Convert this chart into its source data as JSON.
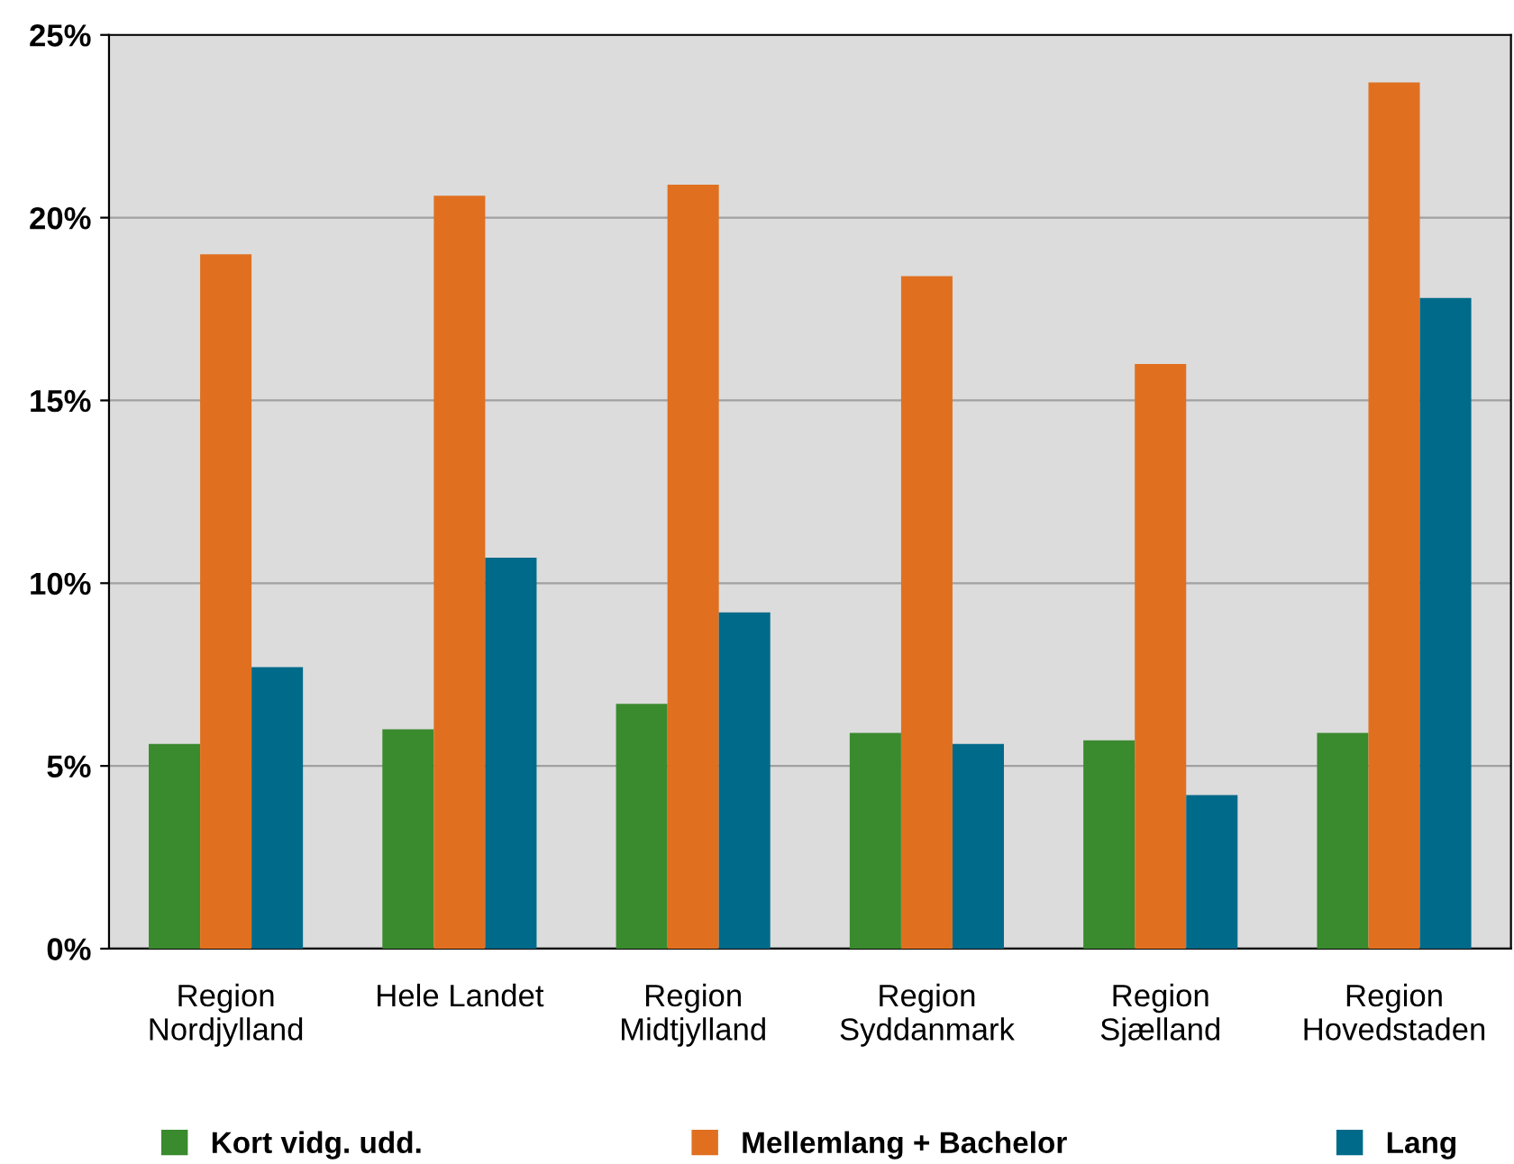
{
  "chart_data": {
    "type": "bar",
    "categories": [
      "Region\nNordjylland",
      "Hele Landet",
      "Region\nMidtjylland",
      "Region\nSyddanmark",
      "Region\nSjælland",
      "Region\nHovedstaden"
    ],
    "series": [
      {
        "name": "Kort vidg. udd.",
        "color": "#3a8a2e",
        "values": [
          5.6,
          6.0,
          6.7,
          5.9,
          5.7,
          5.9
        ]
      },
      {
        "name": "Mellemlang + Bachelor",
        "color": "#e07020",
        "values": [
          19.0,
          20.6,
          20.9,
          18.4,
          16.0,
          23.7
        ]
      },
      {
        "name": "Lang",
        "color": "#006a8a",
        "values": [
          7.7,
          10.7,
          9.2,
          5.6,
          4.2,
          17.8
        ]
      }
    ],
    "ylim": [
      0,
      25
    ],
    "yticks": [
      {
        "value": 0,
        "label": "0%"
      },
      {
        "value": 5,
        "label": "5%"
      },
      {
        "value": 10,
        "label": "10%"
      },
      {
        "value": 15,
        "label": "15%"
      },
      {
        "value": 20,
        "label": "20%"
      },
      {
        "value": 25,
        "label": "25%"
      }
    ],
    "grid": "y",
    "legend": "bottom"
  }
}
